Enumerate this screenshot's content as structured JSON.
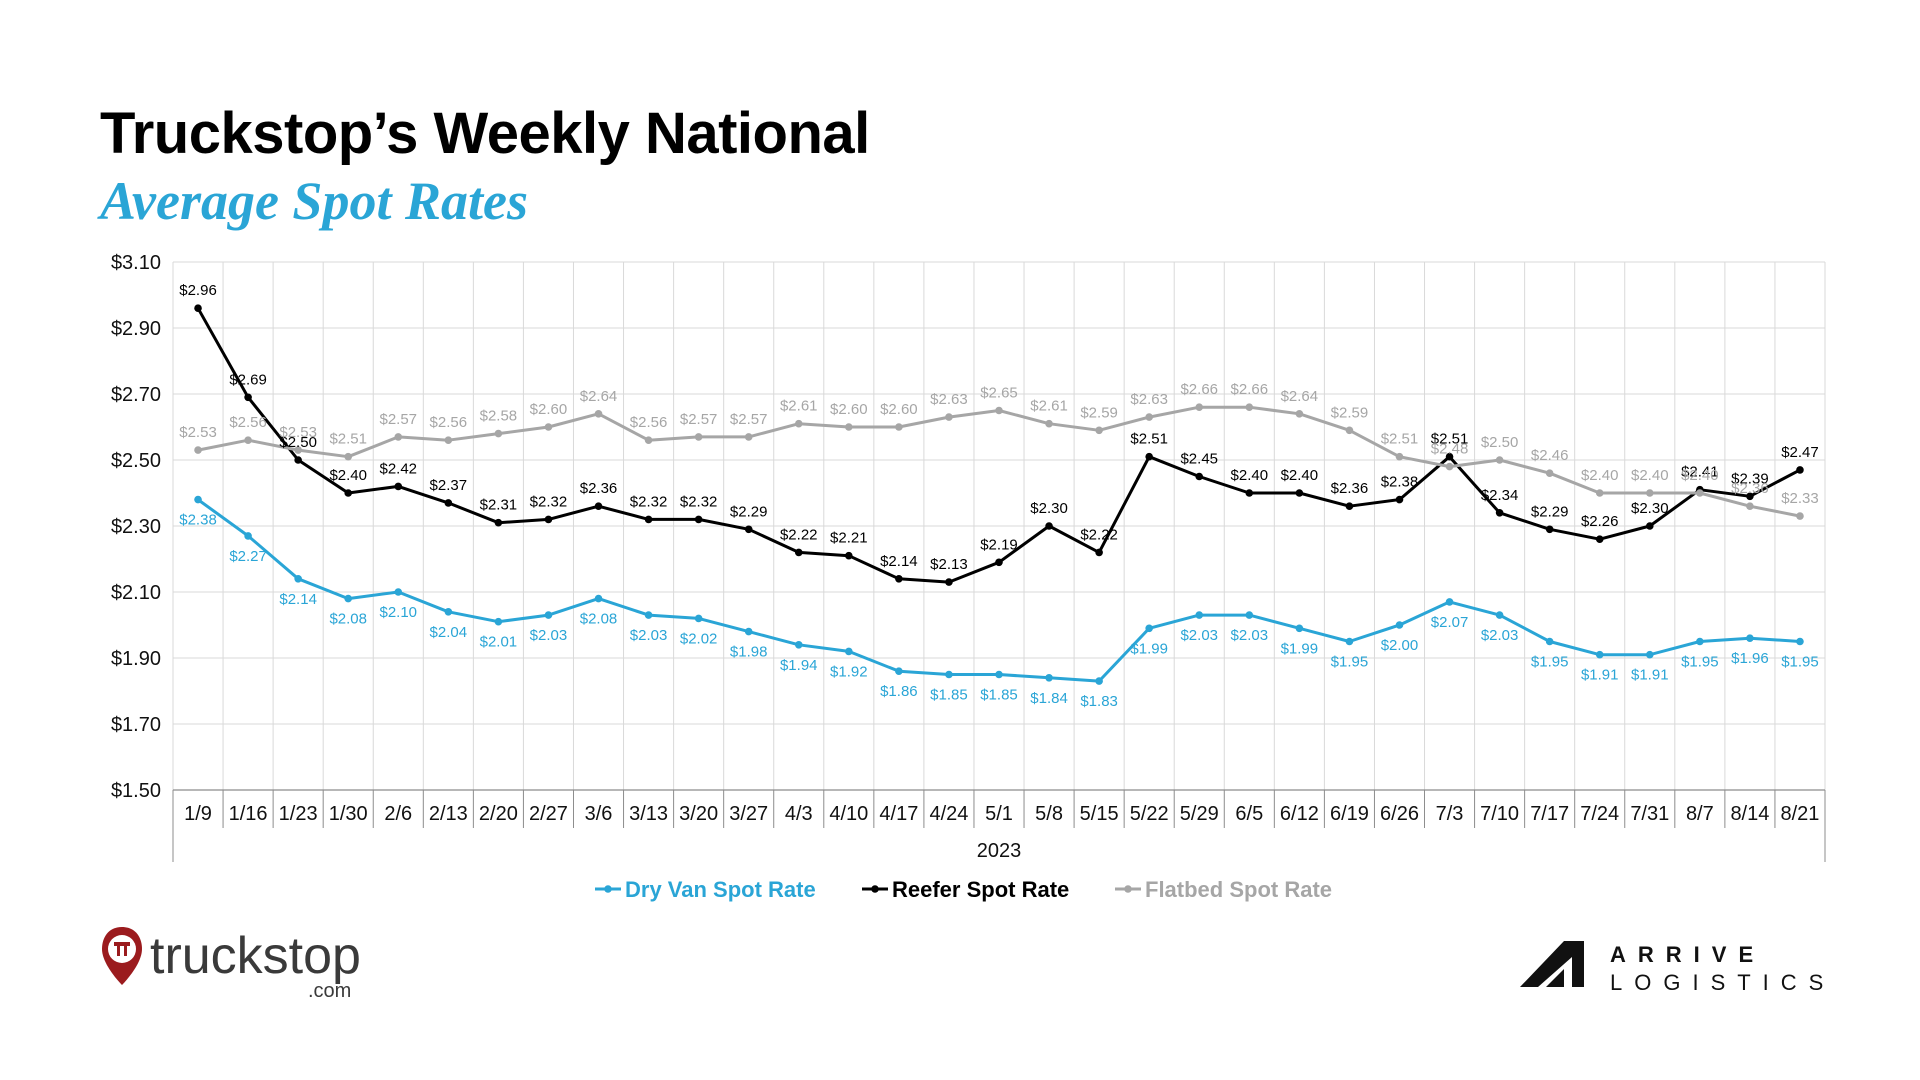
{
  "header": {
    "title": "Truckstop’s Weekly National",
    "subtitle": "Average Spot Rates"
  },
  "brands": {
    "left_logo_text": "truckstop",
    "left_logo_sub": ".com",
    "right_logo_line1": "ARRIVE",
    "right_logo_line2": "LOGISTICS"
  },
  "chart_data": {
    "type": "line",
    "categories": [
      "1/9",
      "1/16",
      "1/23",
      "1/30",
      "2/6",
      "2/13",
      "2/20",
      "2/27",
      "3/6",
      "3/13",
      "3/20",
      "3/27",
      "4/3",
      "4/10",
      "4/17",
      "4/24",
      "5/1",
      "5/8",
      "5/15",
      "5/22",
      "5/29",
      "6/5",
      "6/12",
      "6/19",
      "6/26",
      "7/3",
      "7/10",
      "7/17",
      "7/24",
      "7/31",
      "8/7",
      "8/14",
      "8/21"
    ],
    "xlabel": "2023",
    "ylabel": "",
    "ylim": [
      1.5,
      3.1
    ],
    "yticks": [
      1.5,
      1.7,
      1.9,
      2.1,
      2.3,
      2.5,
      2.7,
      2.9,
      3.1
    ],
    "ytick_labels": [
      "$1.50",
      "$1.70",
      "$1.90",
      "$2.10",
      "$2.30",
      "$2.50",
      "$2.70",
      "$2.90",
      "$3.10"
    ],
    "grid": true,
    "legend_position": "bottom",
    "series": [
      {
        "name": "Dry Van Spot Rate",
        "color": "#2aa5d6",
        "label_position": "below",
        "values": [
          2.38,
          2.27,
          2.14,
          2.08,
          2.1,
          2.04,
          2.01,
          2.03,
          2.08,
          2.03,
          2.02,
          1.98,
          1.94,
          1.92,
          1.86,
          1.85,
          1.85,
          1.84,
          1.83,
          1.99,
          2.03,
          2.03,
          1.99,
          1.95,
          2.0,
          2.07,
          2.03,
          1.95,
          1.91,
          1.91,
          1.95,
          1.96,
          1.95
        ],
        "labels": [
          "$2.38",
          "$2.27",
          "$2.14",
          "$2.08",
          "$2.10",
          "$2.04",
          "$2.01",
          "$2.03",
          "$2.08",
          "$2.03",
          "$2.02",
          "$1.98",
          "$1.94",
          "$1.92",
          "$1.86",
          "$1.85",
          "$1.85",
          "$1.84",
          "$1.83",
          "$1.99",
          "$2.03",
          "$2.03",
          "$1.99",
          "$1.95",
          "$2.00",
          "$2.07",
          "$2.03",
          "$1.95",
          "$1.91",
          "$1.91",
          "$1.95",
          "$1.96",
          "$1.95"
        ]
      },
      {
        "name": "Reefer Spot Rate",
        "color": "#000000",
        "label_position": "above",
        "values": [
          2.96,
          2.69,
          2.5,
          2.4,
          2.42,
          2.37,
          2.31,
          2.32,
          2.36,
          2.32,
          2.32,
          2.29,
          2.22,
          2.21,
          2.14,
          2.13,
          2.19,
          2.3,
          2.22,
          2.51,
          2.45,
          2.4,
          2.4,
          2.36,
          2.38,
          2.51,
          2.34,
          2.29,
          2.26,
          2.3,
          2.41,
          2.39,
          2.47
        ],
        "labels": [
          "$2.96",
          "$2.69",
          "$2.50",
          "$2.40",
          "$2.42",
          "$2.37",
          "$2.31",
          "$2.32",
          "$2.36",
          "$2.32",
          "$2.32",
          "$2.29",
          "$2.22",
          "$2.21",
          "$2.14",
          "$2.13",
          "$2.19",
          "$2.30",
          "$2.22",
          "$2.51",
          "$2.45",
          "$2.40",
          "$2.40",
          "$2.36",
          "$2.38",
          "$2.51",
          "$2.34",
          "$2.29",
          "$2.26",
          "$2.30",
          "$2.41",
          "$2.39",
          "$2.47"
        ]
      },
      {
        "name": "Flatbed Spot Rate",
        "color": "#a6a6a6",
        "label_position": "above",
        "values": [
          2.53,
          2.56,
          2.53,
          2.51,
          2.57,
          2.56,
          2.58,
          2.6,
          2.64,
          2.56,
          2.57,
          2.57,
          2.61,
          2.6,
          2.6,
          2.63,
          2.65,
          2.61,
          2.59,
          2.63,
          2.66,
          2.66,
          2.64,
          2.59,
          2.51,
          2.48,
          2.5,
          2.46,
          2.4,
          2.4,
          2.4,
          2.36,
          2.33
        ],
        "labels": [
          "$2.53",
          "$2.56",
          "$2.53",
          "$2.51",
          "$2.57",
          "$2.56",
          "$2.58",
          "$2.60",
          "$2.64",
          "$2.56",
          "$2.57",
          "$2.57",
          "$2.61",
          "$2.60",
          "$2.60",
          "$2.63",
          "$2.65",
          "$2.61",
          "$2.59",
          "$2.63",
          "$2.66",
          "$2.66",
          "$2.64",
          "$2.59",
          "$2.51",
          "$2.48",
          "$2.50",
          "$2.46",
          "$2.40",
          "$2.40",
          "$2.40",
          "$2.36",
          "$2.33"
        ]
      }
    ]
  }
}
